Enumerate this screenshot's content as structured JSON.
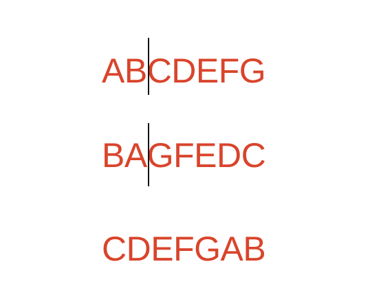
{
  "colors": {
    "text": "#d9442b",
    "cursor": "#111111",
    "background": "#ffffff"
  },
  "lines": [
    {
      "text": "ABCDEFG"
    },
    {
      "text": "BAGFEDC"
    },
    {
      "text": "CDEFGAB"
    }
  ]
}
